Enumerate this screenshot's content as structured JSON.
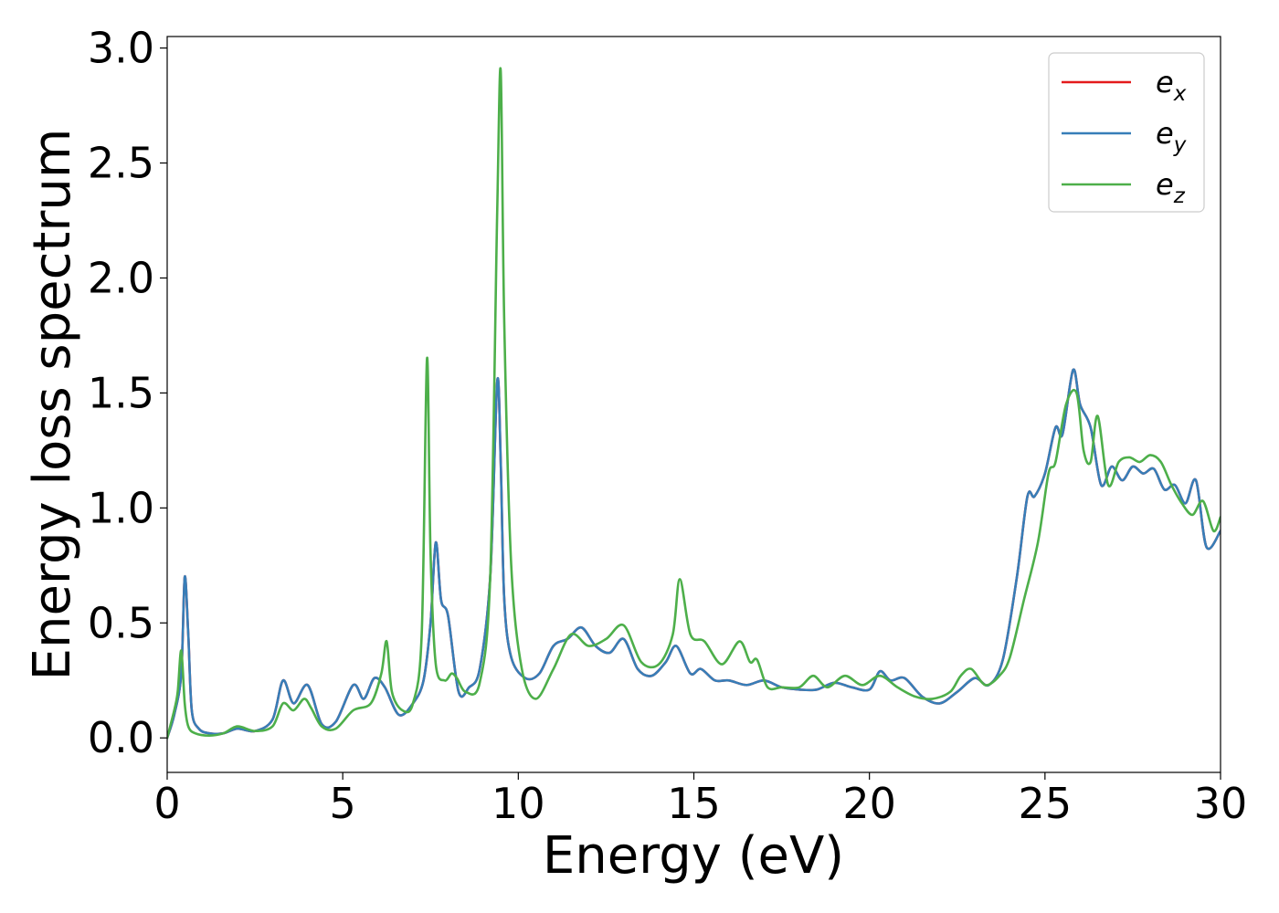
{
  "chart_data": {
    "type": "line",
    "title": "",
    "xlabel": "Energy (eV)",
    "ylabel": "Energy loss spectrum",
    "xlim": [
      0,
      30
    ],
    "ylim": [
      -0.15,
      3.05
    ],
    "x_ticks": [
      0,
      5,
      10,
      15,
      20,
      25,
      30
    ],
    "x_tick_labels": [
      "0",
      "5",
      "10",
      "15",
      "20",
      "25",
      "30"
    ],
    "y_ticks": [
      0.0,
      0.5,
      1.0,
      1.5,
      2.0,
      2.5,
      3.0
    ],
    "y_tick_labels": [
      "0.0",
      "0.5",
      "1.0",
      "1.5",
      "2.0",
      "2.5",
      "3.0"
    ],
    "grid": false,
    "legend_position": "top-right",
    "series": [
      {
        "name": "e",
        "subscript": "x",
        "color": "#e41a1c",
        "x": [
          0,
          0.2,
          0.4,
          0.5,
          0.6,
          0.7,
          0.9,
          1.2,
          1.6,
          2.0,
          2.5,
          3.0,
          3.3,
          3.6,
          4.0,
          4.4,
          4.8,
          5.3,
          5.6,
          5.9,
          6.2,
          6.6,
          7.0,
          7.3,
          7.5,
          7.65,
          7.8,
          8.0,
          8.3,
          8.6,
          8.9,
          9.2,
          9.4,
          9.5,
          9.6,
          9.8,
          10.2,
          10.6,
          11.0,
          11.4,
          11.8,
          12.2,
          12.6,
          13.0,
          13.4,
          13.8,
          14.2,
          14.5,
          14.9,
          15.2,
          15.6,
          16.0,
          16.5,
          17.0,
          17.5,
          18.0,
          18.5,
          19.0,
          19.5,
          20.0,
          20.3,
          20.6,
          21.0,
          21.5,
          22.0,
          22.5,
          23.0,
          23.4,
          23.8,
          24.2,
          24.5,
          24.7,
          25.0,
          25.3,
          25.5,
          25.8,
          26.0,
          26.3,
          26.6,
          26.9,
          27.2,
          27.5,
          27.8,
          28.1,
          28.4,
          28.7,
          29.0,
          29.3,
          29.6,
          30.0
        ],
        "values": [
          0.0,
          0.1,
          0.28,
          0.7,
          0.45,
          0.12,
          0.04,
          0.02,
          0.02,
          0.04,
          0.03,
          0.08,
          0.25,
          0.15,
          0.23,
          0.06,
          0.07,
          0.23,
          0.17,
          0.26,
          0.22,
          0.1,
          0.15,
          0.25,
          0.5,
          0.85,
          0.6,
          0.53,
          0.2,
          0.22,
          0.3,
          0.7,
          1.55,
          1.2,
          0.6,
          0.35,
          0.26,
          0.28,
          0.4,
          0.43,
          0.48,
          0.4,
          0.37,
          0.43,
          0.3,
          0.27,
          0.33,
          0.4,
          0.28,
          0.3,
          0.25,
          0.25,
          0.23,
          0.25,
          0.22,
          0.21,
          0.21,
          0.24,
          0.22,
          0.21,
          0.29,
          0.25,
          0.26,
          0.18,
          0.15,
          0.2,
          0.26,
          0.23,
          0.34,
          0.7,
          1.05,
          1.05,
          1.15,
          1.35,
          1.32,
          1.6,
          1.45,
          1.35,
          1.1,
          1.18,
          1.12,
          1.18,
          1.15,
          1.17,
          1.08,
          1.1,
          1.02,
          1.12,
          0.83,
          0.9
        ]
      },
      {
        "name": "e",
        "subscript": "y",
        "color": "#377eb8",
        "x": [
          0,
          0.2,
          0.4,
          0.5,
          0.6,
          0.7,
          0.9,
          1.2,
          1.6,
          2.0,
          2.5,
          3.0,
          3.3,
          3.6,
          4.0,
          4.4,
          4.8,
          5.3,
          5.6,
          5.9,
          6.2,
          6.6,
          7.0,
          7.3,
          7.5,
          7.65,
          7.8,
          8.0,
          8.3,
          8.6,
          8.9,
          9.2,
          9.4,
          9.5,
          9.6,
          9.8,
          10.2,
          10.6,
          11.0,
          11.4,
          11.8,
          12.2,
          12.6,
          13.0,
          13.4,
          13.8,
          14.2,
          14.5,
          14.9,
          15.2,
          15.6,
          16.0,
          16.5,
          17.0,
          17.5,
          18.0,
          18.5,
          19.0,
          19.5,
          20.0,
          20.3,
          20.6,
          21.0,
          21.5,
          22.0,
          22.5,
          23.0,
          23.4,
          23.8,
          24.2,
          24.5,
          24.7,
          25.0,
          25.3,
          25.5,
          25.8,
          26.0,
          26.3,
          26.6,
          26.9,
          27.2,
          27.5,
          27.8,
          28.1,
          28.4,
          28.7,
          29.0,
          29.3,
          29.6,
          30.0
        ],
        "values": [
          0.0,
          0.1,
          0.28,
          0.7,
          0.45,
          0.12,
          0.04,
          0.02,
          0.02,
          0.04,
          0.03,
          0.08,
          0.25,
          0.15,
          0.23,
          0.06,
          0.07,
          0.23,
          0.17,
          0.26,
          0.22,
          0.1,
          0.15,
          0.25,
          0.5,
          0.85,
          0.6,
          0.53,
          0.2,
          0.22,
          0.3,
          0.7,
          1.55,
          1.2,
          0.6,
          0.35,
          0.26,
          0.28,
          0.4,
          0.43,
          0.48,
          0.4,
          0.37,
          0.43,
          0.3,
          0.27,
          0.33,
          0.4,
          0.28,
          0.3,
          0.25,
          0.25,
          0.23,
          0.25,
          0.22,
          0.21,
          0.21,
          0.24,
          0.22,
          0.21,
          0.29,
          0.25,
          0.26,
          0.18,
          0.15,
          0.2,
          0.26,
          0.23,
          0.34,
          0.7,
          1.05,
          1.05,
          1.15,
          1.35,
          1.32,
          1.6,
          1.45,
          1.35,
          1.1,
          1.18,
          1.12,
          1.18,
          1.15,
          1.17,
          1.08,
          1.1,
          1.02,
          1.12,
          0.83,
          0.9
        ]
      },
      {
        "name": "e",
        "subscript": "z",
        "color": "#4daf4a",
        "x": [
          0,
          0.2,
          0.3,
          0.4,
          0.5,
          0.6,
          0.8,
          1.2,
          1.6,
          2.0,
          2.5,
          3.0,
          3.3,
          3.6,
          3.9,
          4.1,
          4.4,
          4.8,
          5.3,
          5.8,
          6.1,
          6.25,
          6.4,
          6.7,
          7.0,
          7.25,
          7.4,
          7.5,
          7.65,
          7.9,
          8.1,
          8.25,
          8.5,
          8.9,
          9.2,
          9.4,
          9.5,
          9.6,
          9.8,
          10.1,
          10.5,
          11.0,
          11.5,
          12.0,
          12.5,
          13.0,
          13.5,
          14.0,
          14.4,
          14.6,
          14.9,
          15.3,
          15.8,
          16.3,
          16.6,
          16.8,
          17.1,
          17.5,
          18.0,
          18.4,
          18.8,
          19.3,
          19.8,
          20.3,
          20.8,
          21.3,
          21.8,
          22.3,
          22.6,
          22.9,
          23.3,
          23.7,
          24.0,
          24.4,
          24.8,
          25.1,
          25.3,
          25.6,
          25.9,
          26.1,
          26.3,
          26.5,
          26.8,
          27.1,
          27.4,
          27.7,
          28.0,
          28.3,
          28.6,
          28.9,
          29.2,
          29.5,
          29.8,
          30.0
        ],
        "values": [
          0.0,
          0.12,
          0.2,
          0.38,
          0.15,
          0.05,
          0.02,
          0.01,
          0.02,
          0.05,
          0.03,
          0.05,
          0.15,
          0.12,
          0.17,
          0.13,
          0.05,
          0.04,
          0.12,
          0.15,
          0.28,
          0.42,
          0.2,
          0.12,
          0.15,
          0.45,
          1.65,
          0.8,
          0.32,
          0.25,
          0.28,
          0.26,
          0.2,
          0.24,
          0.7,
          2.3,
          2.9,
          1.8,
          0.75,
          0.3,
          0.17,
          0.3,
          0.45,
          0.4,
          0.43,
          0.49,
          0.33,
          0.32,
          0.45,
          0.69,
          0.45,
          0.42,
          0.32,
          0.42,
          0.33,
          0.34,
          0.22,
          0.22,
          0.22,
          0.27,
          0.22,
          0.27,
          0.23,
          0.27,
          0.22,
          0.18,
          0.17,
          0.2,
          0.27,
          0.3,
          0.23,
          0.27,
          0.35,
          0.6,
          0.85,
          1.15,
          1.2,
          1.45,
          1.5,
          1.25,
          1.2,
          1.4,
          1.1,
          1.2,
          1.22,
          1.2,
          1.23,
          1.2,
          1.1,
          1.02,
          0.97,
          1.03,
          0.9,
          0.96
        ]
      }
    ]
  }
}
